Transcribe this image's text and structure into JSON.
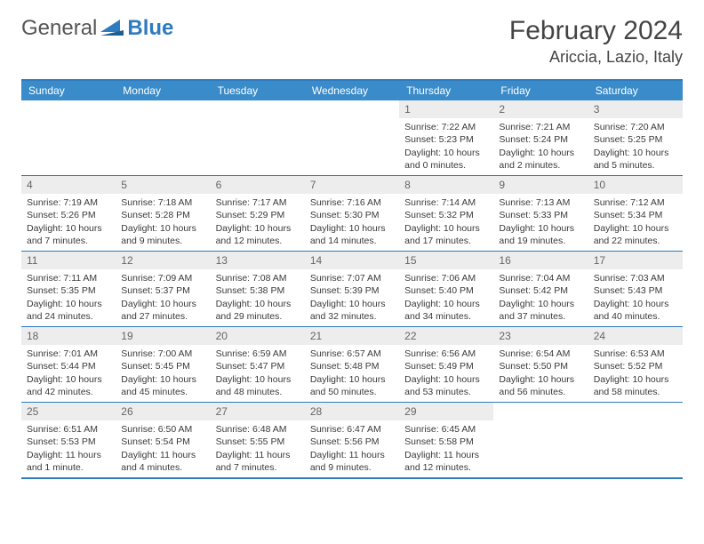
{
  "brand": {
    "name_part1": "General",
    "name_part2": "Blue"
  },
  "title": "February 2024",
  "location": "Ariccia, Lazio, Italy",
  "colors": {
    "header_bg": "#3a8bc9",
    "border": "#2f7bbf",
    "day_num_bg": "#ededed",
    "text": "#333333"
  },
  "day_headers": [
    "Sunday",
    "Monday",
    "Tuesday",
    "Wednesday",
    "Thursday",
    "Friday",
    "Saturday"
  ],
  "weeks": [
    [
      null,
      null,
      null,
      null,
      {
        "n": "1",
        "sunrise": "Sunrise: 7:22 AM",
        "sunset": "Sunset: 5:23 PM",
        "daylight": "Daylight: 10 hours and 0 minutes."
      },
      {
        "n": "2",
        "sunrise": "Sunrise: 7:21 AM",
        "sunset": "Sunset: 5:24 PM",
        "daylight": "Daylight: 10 hours and 2 minutes."
      },
      {
        "n": "3",
        "sunrise": "Sunrise: 7:20 AM",
        "sunset": "Sunset: 5:25 PM",
        "daylight": "Daylight: 10 hours and 5 minutes."
      }
    ],
    [
      {
        "n": "4",
        "sunrise": "Sunrise: 7:19 AM",
        "sunset": "Sunset: 5:26 PM",
        "daylight": "Daylight: 10 hours and 7 minutes."
      },
      {
        "n": "5",
        "sunrise": "Sunrise: 7:18 AM",
        "sunset": "Sunset: 5:28 PM",
        "daylight": "Daylight: 10 hours and 9 minutes."
      },
      {
        "n": "6",
        "sunrise": "Sunrise: 7:17 AM",
        "sunset": "Sunset: 5:29 PM",
        "daylight": "Daylight: 10 hours and 12 minutes."
      },
      {
        "n": "7",
        "sunrise": "Sunrise: 7:16 AM",
        "sunset": "Sunset: 5:30 PM",
        "daylight": "Daylight: 10 hours and 14 minutes."
      },
      {
        "n": "8",
        "sunrise": "Sunrise: 7:14 AM",
        "sunset": "Sunset: 5:32 PM",
        "daylight": "Daylight: 10 hours and 17 minutes."
      },
      {
        "n": "9",
        "sunrise": "Sunrise: 7:13 AM",
        "sunset": "Sunset: 5:33 PM",
        "daylight": "Daylight: 10 hours and 19 minutes."
      },
      {
        "n": "10",
        "sunrise": "Sunrise: 7:12 AM",
        "sunset": "Sunset: 5:34 PM",
        "daylight": "Daylight: 10 hours and 22 minutes."
      }
    ],
    [
      {
        "n": "11",
        "sunrise": "Sunrise: 7:11 AM",
        "sunset": "Sunset: 5:35 PM",
        "daylight": "Daylight: 10 hours and 24 minutes."
      },
      {
        "n": "12",
        "sunrise": "Sunrise: 7:09 AM",
        "sunset": "Sunset: 5:37 PM",
        "daylight": "Daylight: 10 hours and 27 minutes."
      },
      {
        "n": "13",
        "sunrise": "Sunrise: 7:08 AM",
        "sunset": "Sunset: 5:38 PM",
        "daylight": "Daylight: 10 hours and 29 minutes."
      },
      {
        "n": "14",
        "sunrise": "Sunrise: 7:07 AM",
        "sunset": "Sunset: 5:39 PM",
        "daylight": "Daylight: 10 hours and 32 minutes."
      },
      {
        "n": "15",
        "sunrise": "Sunrise: 7:06 AM",
        "sunset": "Sunset: 5:40 PM",
        "daylight": "Daylight: 10 hours and 34 minutes."
      },
      {
        "n": "16",
        "sunrise": "Sunrise: 7:04 AM",
        "sunset": "Sunset: 5:42 PM",
        "daylight": "Daylight: 10 hours and 37 minutes."
      },
      {
        "n": "17",
        "sunrise": "Sunrise: 7:03 AM",
        "sunset": "Sunset: 5:43 PM",
        "daylight": "Daylight: 10 hours and 40 minutes."
      }
    ],
    [
      {
        "n": "18",
        "sunrise": "Sunrise: 7:01 AM",
        "sunset": "Sunset: 5:44 PM",
        "daylight": "Daylight: 10 hours and 42 minutes."
      },
      {
        "n": "19",
        "sunrise": "Sunrise: 7:00 AM",
        "sunset": "Sunset: 5:45 PM",
        "daylight": "Daylight: 10 hours and 45 minutes."
      },
      {
        "n": "20",
        "sunrise": "Sunrise: 6:59 AM",
        "sunset": "Sunset: 5:47 PM",
        "daylight": "Daylight: 10 hours and 48 minutes."
      },
      {
        "n": "21",
        "sunrise": "Sunrise: 6:57 AM",
        "sunset": "Sunset: 5:48 PM",
        "daylight": "Daylight: 10 hours and 50 minutes."
      },
      {
        "n": "22",
        "sunrise": "Sunrise: 6:56 AM",
        "sunset": "Sunset: 5:49 PM",
        "daylight": "Daylight: 10 hours and 53 minutes."
      },
      {
        "n": "23",
        "sunrise": "Sunrise: 6:54 AM",
        "sunset": "Sunset: 5:50 PM",
        "daylight": "Daylight: 10 hours and 56 minutes."
      },
      {
        "n": "24",
        "sunrise": "Sunrise: 6:53 AM",
        "sunset": "Sunset: 5:52 PM",
        "daylight": "Daylight: 10 hours and 58 minutes."
      }
    ],
    [
      {
        "n": "25",
        "sunrise": "Sunrise: 6:51 AM",
        "sunset": "Sunset: 5:53 PM",
        "daylight": "Daylight: 11 hours and 1 minute."
      },
      {
        "n": "26",
        "sunrise": "Sunrise: 6:50 AM",
        "sunset": "Sunset: 5:54 PM",
        "daylight": "Daylight: 11 hours and 4 minutes."
      },
      {
        "n": "27",
        "sunrise": "Sunrise: 6:48 AM",
        "sunset": "Sunset: 5:55 PM",
        "daylight": "Daylight: 11 hours and 7 minutes."
      },
      {
        "n": "28",
        "sunrise": "Sunrise: 6:47 AM",
        "sunset": "Sunset: 5:56 PM",
        "daylight": "Daylight: 11 hours and 9 minutes."
      },
      {
        "n": "29",
        "sunrise": "Sunrise: 6:45 AM",
        "sunset": "Sunset: 5:58 PM",
        "daylight": "Daylight: 11 hours and 12 minutes."
      },
      null,
      null
    ]
  ]
}
